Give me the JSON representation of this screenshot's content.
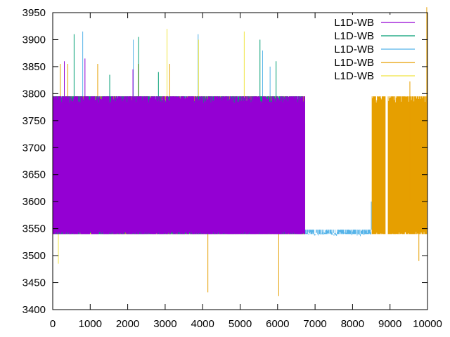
{
  "chart_data": {
    "type": "line",
    "title": "",
    "xlabel": "",
    "ylabel": "",
    "xlim": [
      0,
      10000
    ],
    "ylim": [
      3400,
      3950
    ],
    "xticks": [
      0,
      1000,
      2000,
      3000,
      4000,
      5000,
      6000,
      7000,
      8000,
      9000,
      10000
    ],
    "yticks": [
      3400,
      3450,
      3500,
      3550,
      3600,
      3650,
      3700,
      3750,
      3800,
      3850,
      3900,
      3950
    ],
    "grid": false,
    "legend_position": "top-right",
    "series": [
      {
        "name": "L1D-WB",
        "color": "#9400d3",
        "bands": [
          [
            0,
            6730,
            3540,
            3795
          ]
        ],
        "spikes": [
          [
            310,
            3860
          ],
          [
            860,
            3865
          ],
          [
            2140,
            3845
          ],
          [
            4490,
            3780
          ],
          [
            4680,
            3775
          ]
        ]
      },
      {
        "name": "L1D-WB",
        "color": "#009e73",
        "bands": [
          [
            0,
            6730,
            3540,
            3795
          ]
        ],
        "spikes": [
          [
            570,
            3910
          ],
          [
            1520,
            3835
          ],
          [
            2290,
            3905
          ],
          [
            2820,
            3840
          ],
          [
            3050,
            3790
          ],
          [
            3710,
            3795
          ],
          [
            5530,
            3900
          ],
          [
            5960,
            3860
          ]
        ]
      },
      {
        "name": "L1D-WB",
        "color": "#56b4e9",
        "bands": [
          [
            0,
            6730,
            3540,
            3795
          ],
          [
            5330,
            6010,
            3540,
            3700
          ],
          [
            6730,
            8500,
            3540,
            3548
          ]
        ],
        "spikes": [
          [
            800,
            3915
          ],
          [
            2150,
            3900
          ],
          [
            3880,
            3910
          ],
          [
            5600,
            3880
          ],
          [
            5800,
            3850
          ],
          [
            8500,
            3548
          ]
        ]
      },
      {
        "name": "L1D-WB",
        "color": "#e69f00",
        "bands": [
          [
            0,
            6730,
            3540,
            3795
          ],
          [
            1370,
            2470,
            3540,
            3745
          ],
          [
            3010,
            3140,
            3540,
            3745
          ],
          [
            3280,
            3530,
            3540,
            3745
          ],
          [
            3680,
            4130,
            3540,
            3745
          ],
          [
            4130,
            4840,
            3540,
            3745
          ],
          [
            5640,
            5950,
            3540,
            3745
          ],
          [
            6010,
            6730,
            3540,
            3745
          ],
          [
            8520,
            8880,
            3540,
            3795
          ],
          [
            8950,
            9990,
            3540,
            3795
          ]
        ],
        "spikes": [
          [
            200,
            3855
          ],
          [
            400,
            3855
          ],
          [
            1200,
            3855
          ],
          [
            2280,
            3855
          ],
          [
            3120,
            3855
          ],
          [
            4140,
            3432
          ],
          [
            6030,
            3425
          ],
          [
            9530,
            3865
          ],
          [
            9770,
            3490
          ],
          [
            9980,
            3960
          ]
        ]
      },
      {
        "name": "L1D-WB",
        "color": "#f0e442",
        "bands": [
          [
            0,
            1370,
            3540,
            3790
          ],
          [
            2470,
            3010,
            3540,
            3790
          ],
          [
            3140,
            3280,
            3540,
            3790
          ],
          [
            3530,
            3680,
            3540,
            3790
          ],
          [
            4840,
            5330,
            3540,
            3790
          ]
        ],
        "spikes": [
          [
            150,
            3485
          ],
          [
            3050,
            3920
          ],
          [
            3890,
            3900
          ],
          [
            5110,
            3915
          ]
        ]
      }
    ]
  }
}
